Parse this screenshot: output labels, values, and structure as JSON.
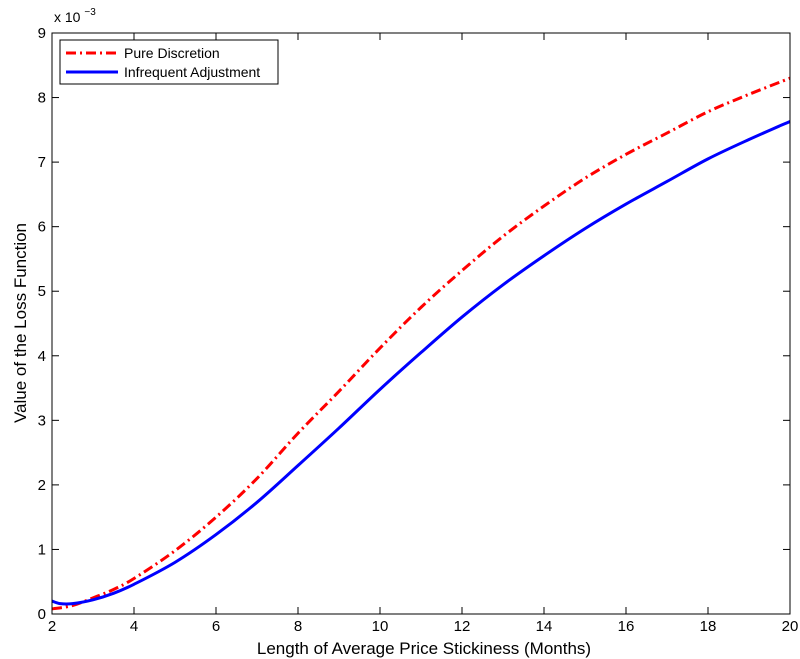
{
  "chart_data": {
    "type": "line",
    "title": "",
    "xlabel": "Length of Average Price Stickiness (Months)",
    "ylabel": "Value of the Loss Function",
    "y_scale_factor_label": "x 10",
    "y_scale_factor_exponent": "−3",
    "xlim": [
      2,
      20
    ],
    "ylim": [
      0,
      9
    ],
    "x_ticks": [
      2,
      4,
      6,
      8,
      10,
      12,
      14,
      16,
      18,
      20
    ],
    "y_ticks": [
      0,
      1,
      2,
      3,
      4,
      5,
      6,
      7,
      8,
      9
    ],
    "x_tick_labels": [
      "2",
      "4",
      "6",
      "8",
      "10",
      "12",
      "14",
      "16",
      "18",
      "20"
    ],
    "y_tick_labels": [
      "0",
      "1",
      "2",
      "3",
      "4",
      "5",
      "6",
      "7",
      "8",
      "9"
    ],
    "grid": false,
    "legend_position": "top-left",
    "series": [
      {
        "name": "Pure Discretion",
        "color": "#ff0000",
        "line_style": "dash-dot",
        "x": [
          2,
          2.5,
          3,
          3.5,
          4,
          5,
          6,
          7,
          8,
          9,
          10,
          11,
          12,
          13,
          14,
          15,
          16,
          17,
          18,
          19,
          20
        ],
        "y": [
          0.08,
          0.13,
          0.25,
          0.38,
          0.55,
          0.98,
          1.5,
          2.1,
          2.8,
          3.45,
          4.12,
          4.75,
          5.32,
          5.85,
          6.32,
          6.75,
          7.12,
          7.45,
          7.78,
          8.05,
          8.3
        ]
      },
      {
        "name": "Infrequent Adjustment",
        "color": "#0000ff",
        "line_style": "solid",
        "x": [
          2,
          2.2,
          2.5,
          3,
          3.5,
          4,
          5,
          6,
          7,
          8,
          9,
          10,
          11,
          12,
          13,
          14,
          15,
          16,
          17,
          18,
          19,
          20
        ],
        "y": [
          0.2,
          0.16,
          0.16,
          0.22,
          0.32,
          0.46,
          0.8,
          1.23,
          1.73,
          2.3,
          2.88,
          3.48,
          4.05,
          4.6,
          5.1,
          5.55,
          5.97,
          6.35,
          6.7,
          7.05,
          7.35,
          7.63
        ]
      }
    ]
  }
}
